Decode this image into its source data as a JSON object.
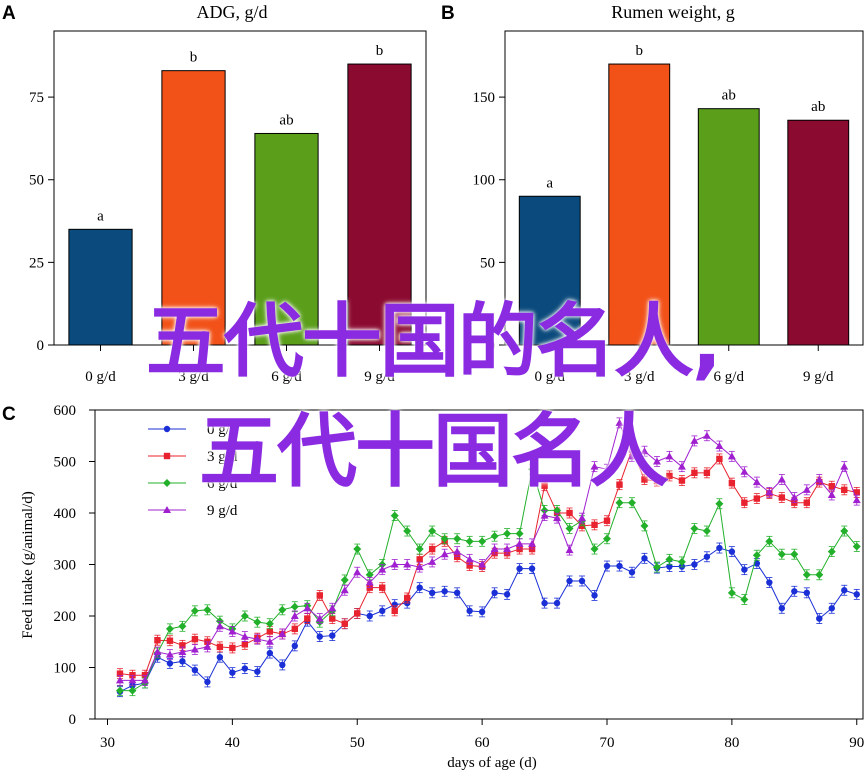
{
  "chart_data": [
    {
      "panel": "A",
      "type": "bar",
      "title": "ADG, g/d",
      "categories": [
        "0 g/d",
        "3 g/d",
        "6 g/d",
        "9 g/d"
      ],
      "values": [
        35,
        83,
        64,
        85
      ],
      "significance_letters": [
        "a",
        "b",
        "ab",
        "b"
      ],
      "colors": [
        "#0a4a7c",
        "#f25118",
        "#5a9e1a",
        "#8b0a30"
      ],
      "ylim": [
        0,
        95
      ],
      "yticks": [
        0,
        25,
        50,
        75
      ]
    },
    {
      "panel": "B",
      "type": "bar",
      "title": "Rumen weight, g",
      "categories": [
        "0 g/d",
        "3 g/d",
        "6 g/d",
        "9 g/d"
      ],
      "values": [
        90,
        170,
        143,
        136
      ],
      "significance_letters": [
        "a",
        "b",
        "ab",
        "ab"
      ],
      "colors": [
        "#0a4a7c",
        "#f25118",
        "#5a9e1a",
        "#8b0a30"
      ],
      "ylim": [
        0,
        190
      ],
      "yticks": [
        0,
        50,
        100,
        150
      ]
    },
    {
      "panel": "C",
      "type": "line",
      "xlabel": "days of age (d)",
      "ylabel": "Feed intake (g/animal/d)",
      "xlim": [
        29,
        90.5
      ],
      "ylim": [
        0,
        600
      ],
      "xticks": [
        30,
        40,
        50,
        60,
        70,
        80,
        90
      ],
      "yticks": [
        0,
        100,
        200,
        300,
        400,
        500,
        600
      ],
      "x": [
        31,
        32,
        33,
        34,
        35,
        36,
        37,
        38,
        39,
        40,
        41,
        42,
        43,
        44,
        45,
        46,
        47,
        48,
        49,
        50,
        51,
        52,
        53,
        54,
        55,
        56,
        57,
        58,
        59,
        60,
        61,
        62,
        63,
        64,
        65,
        66,
        67,
        68,
        69,
        70,
        71,
        72,
        73,
        74,
        75,
        76,
        77,
        78,
        79,
        80,
        81,
        82,
        83,
        84,
        85,
        86,
        87,
        88,
        89,
        90
      ],
      "series": [
        {
          "name": "0 g/d",
          "color": "#1a2fd6",
          "marker": "circle",
          "values": [
            53,
            65,
            70,
            120,
            108,
            112,
            95,
            72,
            120,
            90,
            98,
            92,
            128,
            105,
            142,
            190,
            160,
            162,
            185,
            205,
            200,
            210,
            222,
            225,
            255,
            245,
            248,
            245,
            210,
            208,
            245,
            242,
            292,
            292,
            225,
            225,
            268,
            268,
            240,
            297,
            297,
            285,
            312,
            293,
            296,
            296,
            300,
            315,
            332,
            325,
            290,
            302,
            265,
            215,
            248,
            245,
            195,
            215,
            250,
            242
          ]
        },
        {
          "name": "3 g/d",
          "color": "#e8222e",
          "marker": "square",
          "values": [
            88,
            85,
            85,
            153,
            152,
            143,
            155,
            150,
            140,
            138,
            145,
            157,
            170,
            165,
            175,
            195,
            240,
            195,
            185,
            205,
            255,
            255,
            210,
            235,
            310,
            330,
            345,
            315,
            298,
            296,
            322,
            322,
            330,
            330,
            453,
            400,
            400,
            375,
            377,
            385,
            455,
            523,
            465,
            462,
            472,
            463,
            478,
            478,
            505,
            458,
            420,
            428,
            438,
            430,
            420,
            420,
            460,
            452,
            445,
            440
          ]
        },
        {
          "name": "6 g/d",
          "color": "#22b02a",
          "marker": "diamond",
          "values": [
            55,
            55,
            70,
            128,
            175,
            180,
            210,
            212,
            190,
            175,
            200,
            188,
            185,
            212,
            218,
            220,
            188,
            210,
            270,
            330,
            280,
            300,
            395,
            365,
            330,
            365,
            350,
            350,
            345,
            345,
            355,
            360,
            360,
            485,
            405,
            405,
            370,
            385,
            330,
            350,
            420,
            420,
            375,
            295,
            310,
            305,
            370,
            365,
            418,
            245,
            232,
            318,
            345,
            320,
            320,
            280,
            280,
            325,
            365,
            335
          ]
        },
        {
          "name": "9 g/d",
          "color": "#a020d0",
          "marker": "triangle",
          "values": [
            75,
            75,
            75,
            130,
            125,
            130,
            135,
            140,
            180,
            170,
            160,
            155,
            150,
            165,
            200,
            215,
            195,
            215,
            250,
            285,
            265,
            290,
            300,
            300,
            295,
            305,
            320,
            325,
            310,
            300,
            330,
            330,
            340,
            340,
            395,
            390,
            328,
            390,
            490,
            485,
            575,
            510,
            520,
            500,
            510,
            490,
            540,
            550,
            530,
            510,
            480,
            460,
            440,
            465,
            430,
            445,
            465,
            435,
            490,
            425
          ]
        }
      ]
    }
  ],
  "panel_letters": [
    "A",
    "B",
    "C"
  ],
  "overlay": {
    "line1": "五代十国的名人,",
    "line2": "五代十国名人"
  }
}
